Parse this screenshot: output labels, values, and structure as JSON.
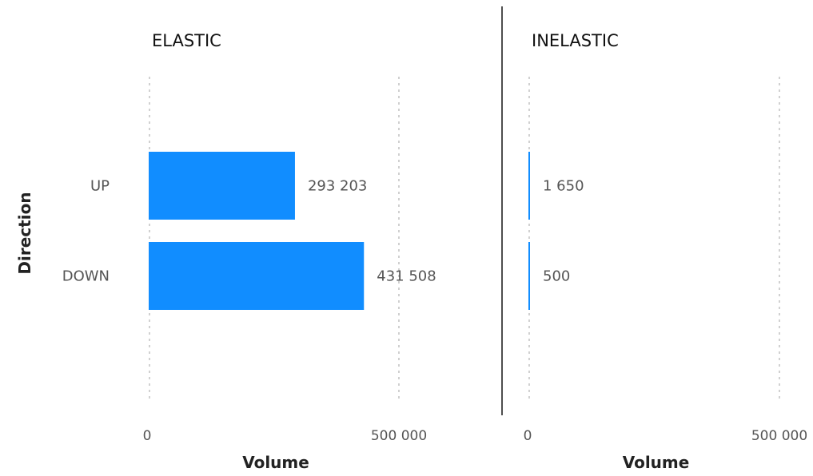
{
  "chart_data": {
    "type": "bar",
    "orientation": "horizontal",
    "ylabel": "Direction",
    "categories": [
      "UP",
      "DOWN"
    ],
    "panels": [
      {
        "title": "ELASTIC",
        "xlabel": "Volume",
        "xlim": [
          0,
          500000
        ],
        "ticks": [
          0,
          500000
        ],
        "tick_labels": [
          "0",
          "500 000"
        ],
        "values": [
          293203,
          431508
        ],
        "value_labels": [
          "293 203",
          "431 508"
        ]
      },
      {
        "title": "INELASTIC",
        "xlabel": "Volume",
        "xlim": [
          0,
          500000
        ],
        "ticks": [
          0,
          500000
        ],
        "tick_labels": [
          "0",
          "500 000"
        ],
        "values": [
          1650,
          500
        ],
        "value_labels": [
          "1 650",
          "500"
        ]
      }
    ],
    "colors": {
      "bar": "#118DFF",
      "divider": "#222222"
    },
    "grid": true,
    "legend": "none"
  }
}
